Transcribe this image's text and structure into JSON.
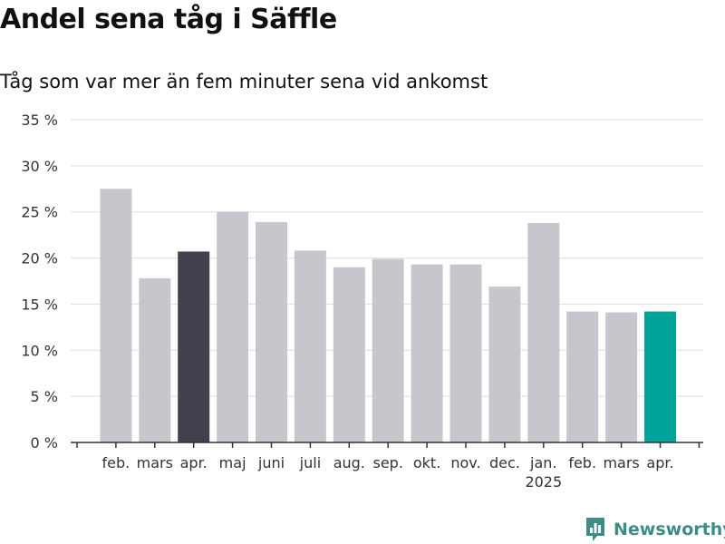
{
  "title": "Andel sena tåg i Säffle",
  "subtitle": "Tåg som var mer än fem minuter sena vid ankomst",
  "brand": {
    "name": "Newsworthy",
    "icon": "newsworthy-logo-icon"
  },
  "colors": {
    "bar_default": "#c7c6cd",
    "bar_highlight_dark": "#43414e",
    "bar_highlight_teal": "#00a49a",
    "grid": "#dddddd",
    "axis": "#333333",
    "brand": "#3d8c86"
  },
  "chart_data": {
    "type": "bar",
    "title": "Andel sena tåg i Säffle",
    "subtitle": "Tåg som var mer än fem minuter sena vid ankomst",
    "xlabel": "",
    "ylabel": "",
    "ylim": [
      0,
      35
    ],
    "yticks": [
      0,
      5,
      10,
      15,
      20,
      25,
      30,
      35
    ],
    "ytick_labels": [
      "0 %",
      "5 %",
      "10 %",
      "15 %",
      "20 %",
      "25 %",
      "30 %",
      "35 %"
    ],
    "grid": true,
    "categories": [
      "feb.",
      "mars",
      "apr.",
      "maj",
      "juni",
      "juli",
      "aug.",
      "sep.",
      "okt.",
      "nov.",
      "dec.",
      "jan.",
      "feb.",
      "mars",
      "apr."
    ],
    "year_labels": [
      "",
      "",
      "",
      "",
      "",
      "",
      "",
      "",
      "",
      "",
      "",
      "2025",
      "",
      "",
      ""
    ],
    "values": [
      27.5,
      17.8,
      20.7,
      25.0,
      23.9,
      20.8,
      19.0,
      19.9,
      19.3,
      19.3,
      16.9,
      23.8,
      14.2,
      14.1,
      14.2
    ],
    "highlights": [
      {
        "index": 2,
        "color": "#43414e"
      },
      {
        "index": 14,
        "color": "#00a49a"
      }
    ]
  }
}
